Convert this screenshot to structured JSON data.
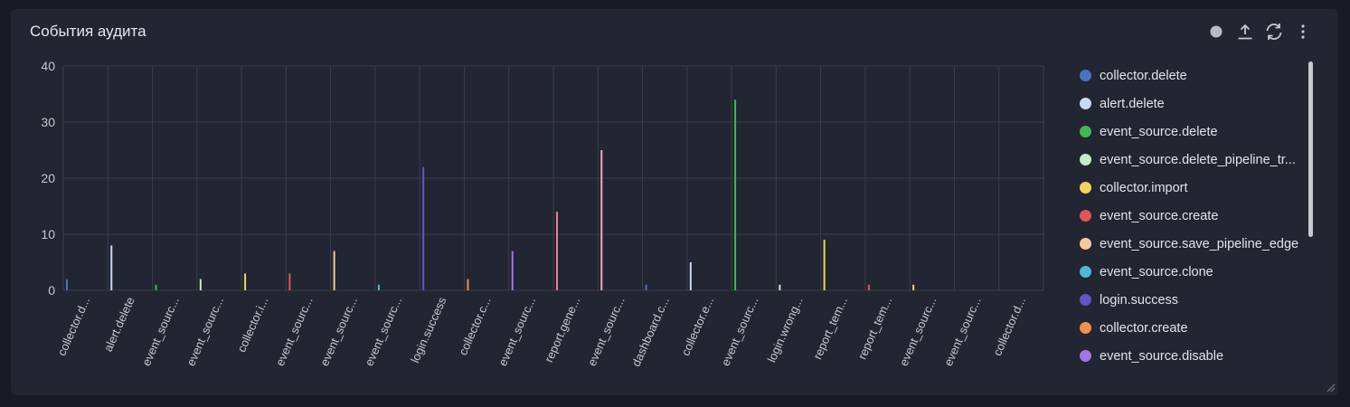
{
  "panel": {
    "title": "События аудита"
  },
  "toolbar": {
    "icons": [
      "status-dot-icon",
      "export-upload-icon",
      "refresh-icon",
      "more-vertical-icon"
    ]
  },
  "colors": {
    "background": "#181b25",
    "panel": "#222532",
    "grid": "#3a3e4c",
    "text": "#c5c8d0"
  },
  "chart_data": {
    "type": "bar",
    "ylim": [
      0,
      40
    ],
    "yticks": [
      0,
      10,
      20,
      30,
      40
    ],
    "grid": true,
    "legend_position": "right",
    "categories": [
      "collector.d...",
      "alert.delete",
      "event_sourc...",
      "event_sourc...",
      "collector.i...",
      "event_sourc...",
      "event_sourc...",
      "event_sourc...",
      "login.success",
      "collector.c...",
      "event_sourc...",
      "report.gene...",
      "event_sourc...",
      "dashboard.c...",
      "collector.e...",
      "event_sourc...",
      "login.wrong...",
      "report_tem...",
      "report_tem...",
      "event_sourc...",
      "event_sourc...",
      "collector.d..."
    ],
    "series": [
      {
        "name": "collector.delete",
        "color": "#4a72c4",
        "index": 0,
        "value": 2
      },
      {
        "name": "alert.delete",
        "color": "#c9d9f5",
        "index": 1,
        "value": 8
      },
      {
        "name": "event_source.delete",
        "color": "#3fb950",
        "index": 2,
        "value": 1
      },
      {
        "name": "event_source.delete_pipeline_tr...",
        "color": "#c6ebc9",
        "index": 3,
        "value": 2
      },
      {
        "name": "collector.import",
        "color": "#f2d45c",
        "index": 4,
        "value": 3
      },
      {
        "name": "event_source.create",
        "color": "#e05555",
        "index": 5,
        "value": 3
      },
      {
        "name": "event_source.save_pipeline_edge",
        "color": "#f5c99a",
        "index": 6,
        "value": 7
      },
      {
        "name": "event_source.clone",
        "color": "#4fb8d4",
        "index": 7,
        "value": 1
      },
      {
        "name": "login.success",
        "color": "#6155c9",
        "index": 8,
        "value": 22
      },
      {
        "name": "collector.create",
        "color": "#f0914a",
        "index": 9,
        "value": 2
      },
      {
        "name": "event_source.disable",
        "color": "#a574e8",
        "index": 10,
        "value": 7
      },
      {
        "name": "",
        "color": "#f07aa0",
        "index": 11,
        "value": 14
      },
      {
        "name": "",
        "color": "#f5a8b8",
        "index": 12,
        "value": 25
      },
      {
        "name": "",
        "color": "#4a72c4",
        "index": 13,
        "value": 1
      },
      {
        "name": "",
        "color": "#c9d9f5",
        "index": 14,
        "value": 5
      },
      {
        "name": "",
        "color": "#3fb950",
        "index": 15,
        "value": 34
      },
      {
        "name": "",
        "color": "#c6ebc9",
        "index": 16,
        "value": 1
      },
      {
        "name": "",
        "color": "#f2d45c",
        "index": 17,
        "value": 9
      },
      {
        "name": "",
        "color": "#e05555",
        "index": 18,
        "value": 1
      },
      {
        "name": "",
        "color": "#f5c99a",
        "index": 19,
        "value": 1
      },
      {
        "name": "",
        "color": "#4fb8d4",
        "index": 20,
        "value": 0
      },
      {
        "name": "",
        "color": "#6155c9",
        "index": 21,
        "value": 0
      }
    ]
  }
}
